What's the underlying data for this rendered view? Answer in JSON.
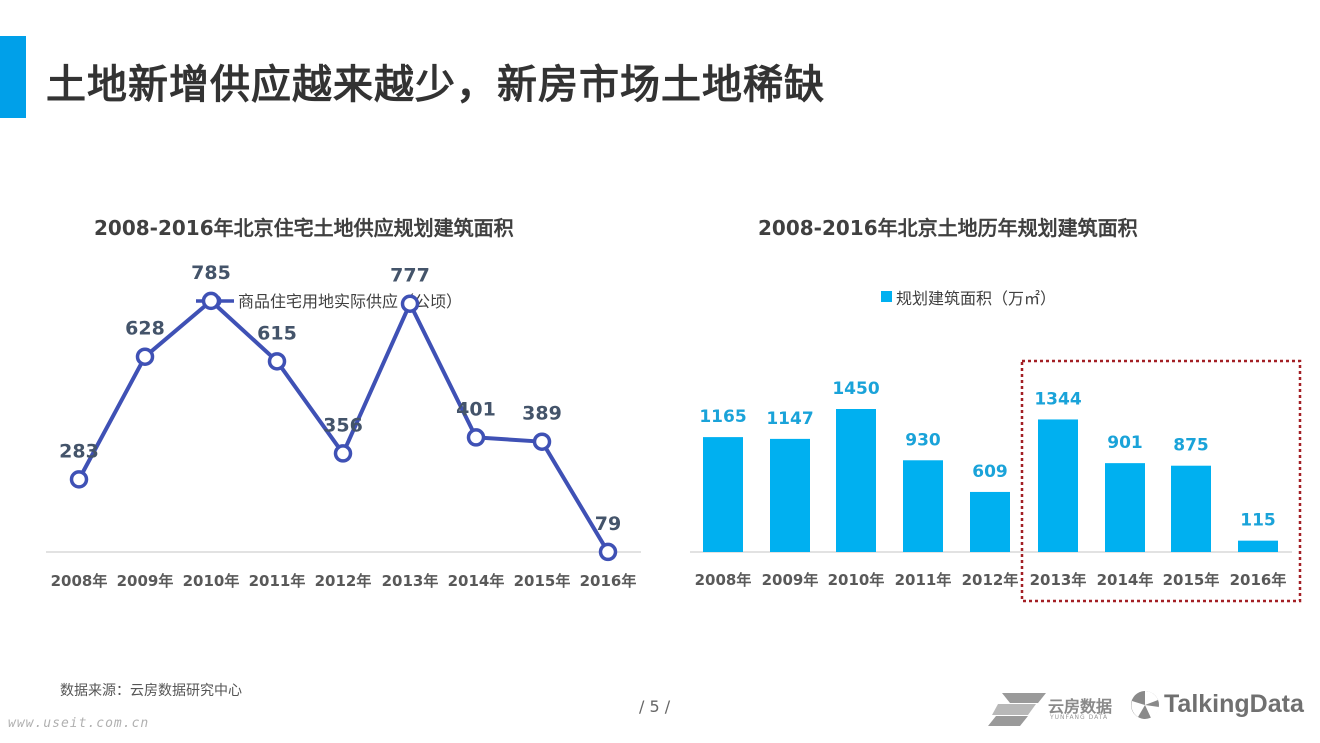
{
  "slide": {
    "title": "土地新增供应越来越少，新房市场土地稀缺",
    "accent_color": "#00a0e9"
  },
  "chart_data": [
    {
      "type": "line",
      "title": "2008-2016年北京住宅土地供应规划建筑面积",
      "categories": [
        "2008年",
        "2009年",
        "2010年",
        "2011年",
        "2012年",
        "2013年",
        "2014年",
        "2015年",
        "2016年"
      ],
      "series": [
        {
          "name": "商品住宅用地实际供应（公顷）",
          "values": [
            283,
            628,
            785,
            615,
            356,
            777,
            401,
            389,
            79
          ],
          "color": "#3f51b5"
        }
      ],
      "legend_position": "top-center",
      "grid": false,
      "ylim": [
        0,
        900
      ],
      "xlabel": "",
      "ylabel": ""
    },
    {
      "type": "bar",
      "title": "2008-2016年北京土地历年规划建筑面积",
      "categories": [
        "2008年",
        "2009年",
        "2010年",
        "2011年",
        "2012年",
        "2013年",
        "2014年",
        "2015年",
        "2016年"
      ],
      "series": [
        {
          "name": "规划建筑面积（万㎡）",
          "values": [
            1165,
            1147,
            1450,
            930,
            609,
            1344,
            901,
            875,
            115
          ],
          "color": "#00b0f0"
        }
      ],
      "legend_position": "top-center",
      "grid": false,
      "ylim": [
        0,
        1600
      ],
      "highlight_range": [
        "2013年",
        "2016年"
      ],
      "highlight_color": "#a31f24",
      "xlabel": "",
      "ylabel": ""
    }
  ],
  "footer": {
    "source": "数据来源：云房数据研究中心",
    "page": "/ 5 /",
    "watermark": "www.useit.com.cn",
    "logo_yunfang": "云房数据",
    "logo_yunfang_sub": "YUNFANG DATA",
    "logo_talkingdata": "TalkingData"
  }
}
